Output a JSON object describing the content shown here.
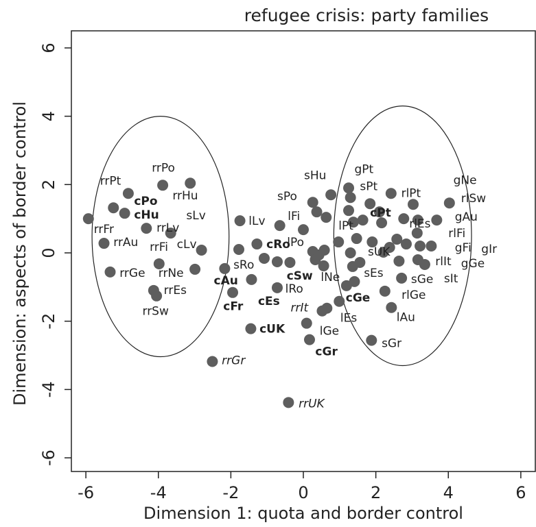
{
  "chart_data": {
    "type": "scatter",
    "title": "refugee crisis: party families",
    "x_label": "Dimension 1: quota and border control",
    "y_label": "Dimension: aspects of border control",
    "xlim": [
      -6.4,
      6.4
    ],
    "ylim": [
      -6.4,
      6.5
    ],
    "xticks": [
      -6,
      -4,
      -2,
      0,
      2,
      4,
      6
    ],
    "yticks": [
      -6,
      -4,
      -2,
      0,
      2,
      4,
      6
    ],
    "color": "#5e5e5e",
    "x": [
      -5.93,
      -5.24,
      -4.83,
      -4.93,
      -4.33,
      -3.88,
      -3.12,
      -3.66,
      -2.81,
      -5.5,
      -5.33,
      -3.98,
      -2.99,
      -4.13,
      -4.05,
      -1.75,
      -0.65,
      -1.78,
      -1.28,
      -1.08,
      -2.17,
      -1.95,
      -1.43,
      -0.72,
      -0.37,
      -0.72,
      -1.45,
      -2.51,
      -0.41,
      0,
      0.26,
      0.37,
      0.63,
      0.76,
      0.26,
      0.43,
      0.58,
      0.33,
      0.56,
      0.97,
      0.09,
      0.17,
      0.65,
      0.52,
      0.99,
      1.25,
      1.3,
      1.25,
      1.38,
      1.64,
      1.84,
      2.1,
      2.16,
      2.42,
      3.03,
      2.77,
      3.16,
      3.68,
      4.03,
      1.47,
      1.9,
      1.3,
      2.21,
      2.38,
      2.58,
      2.84,
      3.14,
      3.22,
      3.53,
      1.36,
      1.56,
      2.64,
      3.16,
      3.35,
      1.41,
      1.19,
      2.71,
      2.25,
      2.43,
      1.88
    ],
    "y": [
      1.0,
      1.32,
      1.74,
      1.16,
      0.72,
      1.98,
      2.04,
      0.58,
      0.08,
      0.28,
      -0.56,
      -0.32,
      -0.48,
      -1.1,
      -1.26,
      0.94,
      0.8,
      0.1,
      0.26,
      -0.16,
      -0.46,
      -1.16,
      -0.78,
      -0.26,
      -0.28,
      -1.02,
      -2.22,
      -3.18,
      -4.38,
      0.68,
      1.48,
      1.2,
      1.04,
      1.7,
      0.04,
      -0.06,
      0.08,
      -0.2,
      -0.38,
      0.32,
      -2.06,
      -2.54,
      -1.62,
      -1.7,
      -1.42,
      1.9,
      1.62,
      1.24,
      0.9,
      0.96,
      1.44,
      1.2,
      0.88,
      1.74,
      1.42,
      1.0,
      0.96,
      0.96,
      1.46,
      0.42,
      0.32,
      0,
      0.02,
      0.16,
      0.4,
      0.26,
      0.58,
      0.2,
      0.2,
      -0.4,
      -0.28,
      -0.24,
      -0.2,
      -0.34,
      -0.84,
      -0.96,
      -0.74,
      -1.12,
      -1.6,
      -2.56
    ],
    "labels": [
      {
        "text": "rrPt",
        "x": -5.61,
        "y": 2.1
      },
      {
        "text": "rrPo",
        "x": -4.18,
        "y": 2.48
      },
      {
        "text": "rrHu",
        "x": -3.61,
        "y": 1.66
      },
      {
        "text": "cPo",
        "x": -4.67,
        "y": 1.5,
        "font_weight": "bold"
      },
      {
        "text": "cHu",
        "x": -4.67,
        "y": 1.1,
        "font_weight": "bold"
      },
      {
        "text": "sLv",
        "x": -3.23,
        "y": 1.08
      },
      {
        "text": "rrFr",
        "x": -5.78,
        "y": 0.68
      },
      {
        "text": "rrLv",
        "x": -4.05,
        "y": 0.72
      },
      {
        "text": "rrAu",
        "x": -5.24,
        "y": 0.3
      },
      {
        "text": "rrFi",
        "x": -4.24,
        "y": 0.16
      },
      {
        "text": "cLv",
        "x": -3.49,
        "y": 0.24
      },
      {
        "text": "rrGe",
        "x": -5.07,
        "y": -0.6
      },
      {
        "text": "rrNe",
        "x": -4.0,
        "y": -0.6
      },
      {
        "text": "rrEs",
        "x": -3.85,
        "y": -1.1
      },
      {
        "text": "rrSw",
        "x": -4.44,
        "y": -1.72
      },
      {
        "text": "lLv",
        "x": -1.51,
        "y": 0.92
      },
      {
        "text": "lFi",
        "x": -0.43,
        "y": 1.06
      },
      {
        "text": "sPo",
        "x": -0.72,
        "y": 1.64
      },
      {
        "text": "sHu",
        "x": 0.02,
        "y": 2.26
      },
      {
        "text": "lPo",
        "x": -0.45,
        "y": 0.3
      },
      {
        "text": "cRo",
        "x": -1.02,
        "y": 0.24,
        "font_weight": "bold"
      },
      {
        "text": "sRo",
        "x": -1.93,
        "y": -0.36
      },
      {
        "text": "cAu",
        "x": -2.47,
        "y": -0.82,
        "font_weight": "bold"
      },
      {
        "text": "cSw",
        "x": -0.46,
        "y": -0.68,
        "font_weight": "bold"
      },
      {
        "text": "lRo",
        "x": -0.5,
        "y": -1.06
      },
      {
        "text": "lNe",
        "x": 0.48,
        "y": -0.72
      },
      {
        "text": "cFr",
        "x": -2.21,
        "y": -1.58,
        "font_weight": "bold"
      },
      {
        "text": "cEs",
        "x": -1.25,
        "y": -1.42,
        "font_weight": "bold"
      },
      {
        "text": "rrIt",
        "x": -0.35,
        "y": -1.62,
        "font_style": "italic"
      },
      {
        "text": "cUK",
        "x": -1.21,
        "y": -2.24,
        "font_weight": "bold"
      },
      {
        "text": "lGe",
        "x": 0.45,
        "y": -2.3
      },
      {
        "text": "cGr",
        "x": 0.33,
        "y": -2.9,
        "font_weight": "bold"
      },
      {
        "text": "rrGr",
        "x": -2.25,
        "y": -3.16,
        "font_style": "italic"
      },
      {
        "text": "rrUK",
        "x": -0.13,
        "y": -4.42,
        "font_style": "italic"
      },
      {
        "text": "lPt",
        "x": 0.97,
        "y": 0.78
      },
      {
        "text": "gPt",
        "x": 1.41,
        "y": 2.44
      },
      {
        "text": "sPt",
        "x": 1.56,
        "y": 1.94
      },
      {
        "text": "rlPt",
        "x": 2.7,
        "y": 1.74
      },
      {
        "text": "cPt",
        "x": 1.84,
        "y": 1.16,
        "font_weight": "bold"
      },
      {
        "text": "rlEs",
        "x": 2.92,
        "y": 0.84
      },
      {
        "text": "sUK",
        "x": 1.78,
        "y": 0.02
      },
      {
        "text": "sEs",
        "x": 1.67,
        "y": -0.6
      },
      {
        "text": "cGe",
        "x": 1.17,
        "y": -1.32,
        "font_weight": "bold"
      },
      {
        "text": "lEs",
        "x": 1.02,
        "y": -1.92
      },
      {
        "text": "sGe",
        "x": 2.97,
        "y": -0.78
      },
      {
        "text": "rlGe",
        "x": 2.71,
        "y": -1.24
      },
      {
        "text": "lAu",
        "x": 2.57,
        "y": -1.9
      },
      {
        "text": "sGr",
        "x": 2.16,
        "y": -2.66
      },
      {
        "text": "gNe",
        "x": 4.14,
        "y": 2.12
      },
      {
        "text": "rlSw",
        "x": 4.35,
        "y": 1.58
      },
      {
        "text": "gAu",
        "x": 4.18,
        "y": 1.04
      },
      {
        "text": "rlFi",
        "x": 4.0,
        "y": 0.56
      },
      {
        "text": "gFi",
        "x": 4.18,
        "y": 0.14
      },
      {
        "text": "gIr",
        "x": 4.91,
        "y": 0.1
      },
      {
        "text": "rlIt",
        "x": 3.64,
        "y": -0.26
      },
      {
        "text": "gGe",
        "x": 4.35,
        "y": -0.32
      },
      {
        "text": "sIt",
        "x": 3.88,
        "y": -0.76
      }
    ],
    "ellipses": [
      {
        "cx": -3.94,
        "cy": 0.48,
        "rx": 1.89,
        "ry": 3.52
      },
      {
        "cx": 2.74,
        "cy": 0.5,
        "rx": 1.9,
        "ry": 3.8
      }
    ]
  }
}
